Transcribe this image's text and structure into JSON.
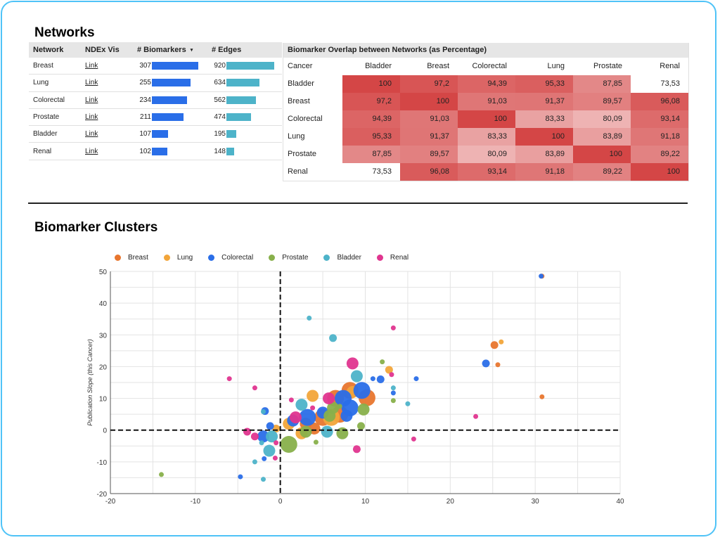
{
  "networks": {
    "title": "Networks",
    "columns": [
      "Network",
      "NDEx Vis",
      "# Biomarkers",
      "# Edges"
    ],
    "sort_indicator": "▾",
    "rows": [
      {
        "network": "Breast",
        "vis": "Link",
        "biomarkers": 307,
        "edges": 920
      },
      {
        "network": "Lung",
        "vis": "Link",
        "biomarkers": 255,
        "edges": 634
      },
      {
        "network": "Colorectal",
        "vis": "Link",
        "biomarkers": 234,
        "edges": 562
      },
      {
        "network": "Prostate",
        "vis": "Link",
        "biomarkers": 211,
        "edges": 474
      },
      {
        "network": "Bladder",
        "vis": "Link",
        "biomarkers": 107,
        "edges": 195
      },
      {
        "network": "Renal",
        "vis": "Link",
        "biomarkers": 102,
        "edges": 148
      }
    ],
    "bar_colors": {
      "biomarkers": "#2a6ee8",
      "edges": "#4db3c9"
    }
  },
  "overlap": {
    "title": "Biomarker Overlap between Networks (as Percentage)",
    "corner": "Cancer",
    "columns": [
      "Bladder",
      "Breast",
      "Colorectal",
      "Lung",
      "Prostate",
      "Renal"
    ],
    "rows": [
      {
        "label": "Bladder",
        "values": [
          "100",
          "97,2",
          "94,39",
          "95,33",
          "87,85",
          "73,53"
        ]
      },
      {
        "label": "Breast",
        "values": [
          "97,2",
          "100",
          "91,03",
          "91,37",
          "89,57",
          "96,08"
        ]
      },
      {
        "label": "Colorectal",
        "values": [
          "94,39",
          "91,03",
          "100",
          "83,33",
          "80,09",
          "93,14"
        ]
      },
      {
        "label": "Lung",
        "values": [
          "95,33",
          "91,37",
          "83,33",
          "100",
          "83,89",
          "91,18"
        ]
      },
      {
        "label": "Prostate",
        "values": [
          "87,85",
          "89,57",
          "80,09",
          "83,89",
          "100",
          "89,22"
        ]
      },
      {
        "label": "Renal",
        "values": [
          "73,53",
          "96,08",
          "93,14",
          "91,18",
          "89,22",
          "100"
        ]
      }
    ],
    "heat_color": "#d23c3c"
  },
  "clusters": {
    "title": "Biomarker Clusters"
  },
  "chart_data": {
    "type": "scatter",
    "title": "",
    "xlabel": "",
    "ylabel": "Publication Slope (this Cancer)",
    "xlim": [
      -20,
      40
    ],
    "ylim": [
      -20,
      50
    ],
    "xticks": [
      -20,
      -10,
      0,
      10,
      20,
      30,
      40
    ],
    "yticks": [
      -20,
      -10,
      0,
      10,
      20,
      30,
      40,
      50
    ],
    "grid": true,
    "legend_position": "top-left",
    "reference_lines": {
      "x": 0,
      "y": 0,
      "style": "dashed"
    },
    "series": [
      {
        "name": "Breast",
        "color": "#e8762e",
        "points": [
          [
            30.8,
            48.5,
            0
          ],
          [
            25.2,
            26.8,
            1
          ],
          [
            25.6,
            20.6,
            0
          ],
          [
            30.8,
            10.5,
            0
          ],
          [
            10.2,
            10.2,
            3
          ],
          [
            8.2,
            12.5,
            3
          ],
          [
            6.5,
            10,
            3
          ],
          [
            5,
            4,
            3
          ],
          [
            3,
            2,
            2
          ],
          [
            7,
            5,
            3
          ],
          [
            4,
            0.5,
            2
          ]
        ]
      },
      {
        "name": "Lung",
        "color": "#f2a53a",
        "points": [
          [
            26,
            27.8,
            0
          ],
          [
            12.8,
            19,
            1
          ],
          [
            3.8,
            10.8,
            2
          ],
          [
            8.5,
            12,
            2
          ],
          [
            1,
            2,
            2
          ],
          [
            6,
            4,
            3
          ],
          [
            2.5,
            -1,
            2
          ],
          [
            -0.5,
            0.5,
            1
          ]
        ]
      },
      {
        "name": "Colorectal",
        "color": "#2a6ee8",
        "points": [
          [
            30.7,
            48.5,
            0
          ],
          [
            24.2,
            21,
            1
          ],
          [
            16,
            16.2,
            0
          ],
          [
            11.8,
            16,
            1
          ],
          [
            10.9,
            16.2,
            0
          ],
          [
            13.3,
            11.7,
            0
          ],
          [
            9.6,
            12.5,
            3
          ],
          [
            7.4,
            10,
            3
          ],
          [
            8.2,
            7,
            3
          ],
          [
            3.2,
            4,
            3
          ],
          [
            1.5,
            3,
            2
          ],
          [
            -1.2,
            1.3,
            1
          ],
          [
            -2,
            -2,
            2
          ],
          [
            -1.8,
            6,
            1
          ],
          [
            -1.9,
            -9,
            0
          ],
          [
            -4.7,
            -14.7,
            0
          ],
          [
            5,
            5.5,
            2
          ],
          [
            7.8,
            4.5,
            2
          ]
        ]
      },
      {
        "name": "Prostate",
        "color": "#88b04b",
        "points": [
          [
            -14,
            -14,
            0
          ],
          [
            12,
            21.5,
            0
          ],
          [
            13.3,
            9.3,
            0
          ],
          [
            9.8,
            6.5,
            2
          ],
          [
            9.5,
            1.3,
            1
          ],
          [
            7.3,
            -1,
            2
          ],
          [
            5.8,
            4.5,
            2
          ],
          [
            3,
            -0.5,
            2
          ],
          [
            1,
            -4.5,
            3
          ],
          [
            4.2,
            -3.8,
            0
          ],
          [
            6.2,
            7,
            2
          ],
          [
            7,
            7.5,
            0
          ]
        ]
      },
      {
        "name": "Bladder",
        "color": "#4db3c9",
        "points": [
          [
            3.4,
            35.3,
            0
          ],
          [
            6.2,
            29,
            1
          ],
          [
            9,
            17,
            2
          ],
          [
            13.3,
            13.3,
            0
          ],
          [
            15,
            8.3,
            0
          ],
          [
            2.5,
            8,
            2
          ],
          [
            5.5,
            -0.5,
            2
          ],
          [
            -1,
            -2,
            2
          ],
          [
            -1.3,
            -6.5,
            2
          ],
          [
            -2,
            -15.5,
            0
          ],
          [
            -3,
            -10,
            0
          ],
          [
            -2.2,
            -4,
            0
          ],
          [
            -2,
            5.8,
            0
          ]
        ]
      },
      {
        "name": "Renal",
        "color": "#e0358f",
        "points": [
          [
            13.3,
            32.2,
            0
          ],
          [
            8.5,
            21,
            2
          ],
          [
            13.1,
            17.5,
            0
          ],
          [
            23,
            4.3,
            0
          ],
          [
            15.7,
            -2.8,
            0
          ],
          [
            9,
            -6,
            1
          ],
          [
            -6,
            16.2,
            0
          ],
          [
            -3,
            13.3,
            0
          ],
          [
            5.7,
            10,
            2
          ],
          [
            1.3,
            9.5,
            0
          ],
          [
            3.8,
            7,
            0
          ],
          [
            1.8,
            4,
            2
          ],
          [
            -3.9,
            -0.5,
            1
          ],
          [
            -3,
            -2,
            1
          ],
          [
            -0.5,
            -4,
            0
          ],
          [
            -0.6,
            -8.8,
            0
          ]
        ]
      }
    ]
  }
}
